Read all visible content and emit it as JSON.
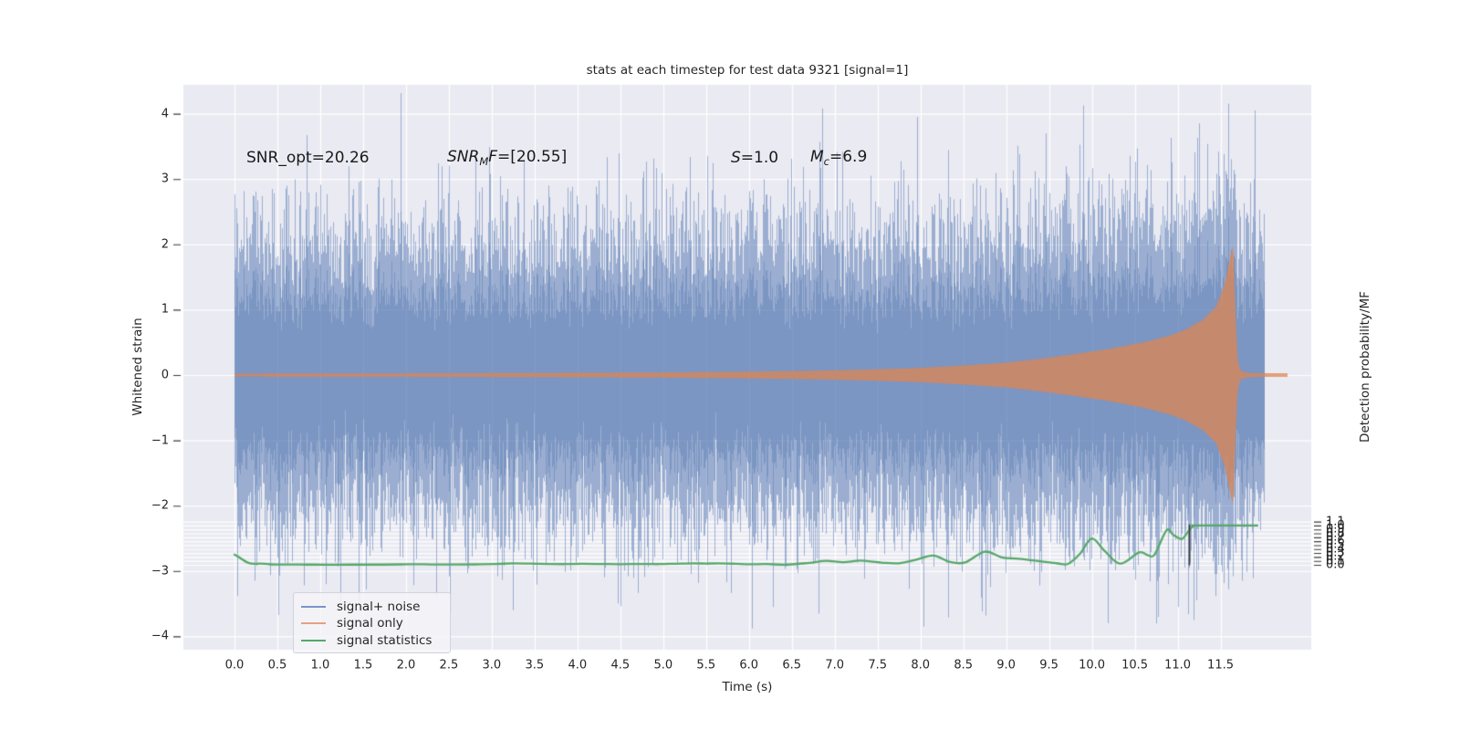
{
  "figure": {
    "title": "stats at each timestep for test data 9321 [signal=1]",
    "background": "#ffffff",
    "plot_background": "#eaeaf2",
    "grid_color": "#ffffff"
  },
  "axes": {
    "x": {
      "label": "Time (s)",
      "tick_labels": [
        "0.0",
        "0.5",
        "1.0",
        "1.5",
        "2.0",
        "2.5",
        "3.0",
        "3.5",
        "4.0",
        "4.5",
        "5.0",
        "5.5",
        "6.0",
        "6.5",
        "7.0",
        "7.5",
        "8.0",
        "8.5",
        "9.0",
        "9.5",
        "10.0",
        "10.5",
        "11.0",
        "11.5"
      ],
      "tick_values": [
        0,
        0.5,
        1,
        1.5,
        2,
        2.5,
        3,
        3.5,
        4,
        4.5,
        5,
        5.5,
        6,
        6.5,
        7,
        7.5,
        8,
        8.5,
        9,
        9.5,
        10,
        10.5,
        11,
        11.5
      ]
    },
    "y_left": {
      "label": "Whitened strain",
      "tick_labels": [
        "4",
        "3",
        "2",
        "1",
        "0",
        "−1",
        "−2",
        "−3",
        "−4"
      ],
      "tick_values": [
        4,
        3,
        2,
        1,
        0,
        -1,
        -2,
        -3,
        -4
      ]
    },
    "y_right": {
      "label": "Detection probability/MF",
      "tick_labels": [
        "1.1",
        "1.0",
        "0.9",
        "0.8",
        "0.7",
        "0.6",
        "0.5",
        "0.4",
        "0.3",
        "0.2",
        "0.1",
        "0.0"
      ],
      "tick_values": [
        1.1,
        1.0,
        0.9,
        0.8,
        0.7,
        0.6,
        0.5,
        0.4,
        0.3,
        0.2,
        0.1,
        0.0
      ]
    }
  },
  "annotations": {
    "snr_opt": {
      "text": "SNR_opt=20.26"
    },
    "snr_mf": {
      "pre": "SNR",
      "sub": "M",
      "mid": "F",
      "post": "=[20.55]"
    },
    "s": {
      "pre": "S",
      "post": "=1.0"
    },
    "mc": {
      "pre": "M",
      "sub": "c",
      "post": "=6.9"
    }
  },
  "legend": {
    "entries": [
      {
        "label": "signal+ noise",
        "color": "#7b94c9"
      },
      {
        "label": "signal only",
        "color": "#e3a183"
      },
      {
        "label": "signal statistics",
        "color": "#55A868"
      }
    ]
  },
  "chart_data": {
    "type": "line",
    "title": "stats at each timestep for test data 9321 [signal=1]",
    "xlabel": "Time (s)",
    "ylabel_left": "Whitened strain",
    "ylabel_right": "Detection probability/MF",
    "xlim": [
      -0.6,
      12.55
    ],
    "ylim_left": [
      -4.3,
      4.45
    ],
    "ylim_right": [
      -0.2,
      1.22
    ],
    "grid": true,
    "legend_position": "lower left",
    "series": [
      {
        "name": "signal+ noise",
        "kind": "noise-band",
        "axis": "left",
        "color": "#4C72B0",
        "alpha": 0.55,
        "t_range": [
          0,
          12.0
        ],
        "sigma": 1.0,
        "samples_per_column": 36,
        "seed": 9321,
        "notable_spikes": [
          {
            "t": 6.85,
            "value": 4.08
          },
          {
            "t": 7.96,
            "value": 3.95
          },
          {
            "t": 11.9,
            "value": 4.05
          },
          {
            "t": 8.04,
            "value": -3.85
          },
          {
            "t": 3.25,
            "value": -3.6
          }
        ]
      },
      {
        "name": "signal only",
        "kind": "chirp-envelope",
        "axis": "left",
        "color": "#DD8452",
        "merger_time": 11.65,
        "envelope": [
          [
            0,
            0.022
          ],
          [
            1,
            0.024
          ],
          [
            2,
            0.026
          ],
          [
            3,
            0.03
          ],
          [
            4,
            0.034
          ],
          [
            5,
            0.04
          ],
          [
            5.5,
            0.045
          ],
          [
            6,
            0.052
          ],
          [
            6.5,
            0.06
          ],
          [
            7,
            0.072
          ],
          [
            7.5,
            0.088
          ],
          [
            8,
            0.11
          ],
          [
            8.5,
            0.145
          ],
          [
            9,
            0.19
          ],
          [
            9.4,
            0.25
          ],
          [
            9.8,
            0.32
          ],
          [
            10.2,
            0.4
          ],
          [
            10.6,
            0.5
          ],
          [
            10.9,
            0.6
          ],
          [
            11.1,
            0.7
          ],
          [
            11.3,
            0.85
          ],
          [
            11.45,
            1.05
          ],
          [
            11.55,
            1.4
          ],
          [
            11.62,
            1.85
          ],
          [
            11.65,
            2.0
          ],
          [
            11.67,
            1.1
          ],
          [
            11.7,
            0.22
          ],
          [
            11.74,
            0.06
          ],
          [
            11.85,
            0.03
          ],
          [
            12.28,
            0.028
          ]
        ]
      },
      {
        "name": "signal statistics",
        "kind": "line",
        "axis": "right",
        "color": "#55A868",
        "points": [
          [
            0.0,
            0.26
          ],
          [
            0.07,
            0.17
          ],
          [
            0.15,
            0.06
          ],
          [
            0.22,
            0.025
          ],
          [
            0.3,
            0.033
          ],
          [
            0.42,
            0.012
          ],
          [
            0.6,
            0.008
          ],
          [
            0.85,
            0.006
          ],
          [
            1.1,
            0.005
          ],
          [
            1.4,
            0.006
          ],
          [
            1.72,
            0.006
          ],
          [
            1.95,
            0.012
          ],
          [
            2.1,
            0.016
          ],
          [
            2.3,
            0.01
          ],
          [
            2.55,
            0.008
          ],
          [
            2.8,
            0.012
          ],
          [
            3.05,
            0.022
          ],
          [
            3.25,
            0.036
          ],
          [
            3.45,
            0.03
          ],
          [
            3.65,
            0.022
          ],
          [
            3.85,
            0.018
          ],
          [
            4.05,
            0.026
          ],
          [
            4.3,
            0.02
          ],
          [
            4.5,
            0.016
          ],
          [
            4.75,
            0.022
          ],
          [
            4.95,
            0.018
          ],
          [
            5.15,
            0.028
          ],
          [
            5.35,
            0.038
          ],
          [
            5.5,
            0.032
          ],
          [
            5.65,
            0.038
          ],
          [
            5.85,
            0.025
          ],
          [
            6.0,
            0.014
          ],
          [
            6.2,
            0.018
          ],
          [
            6.45,
            0.006
          ],
          [
            6.7,
            0.05
          ],
          [
            6.9,
            0.1
          ],
          [
            7.1,
            0.068
          ],
          [
            7.3,
            0.105
          ],
          [
            7.55,
            0.055
          ],
          [
            7.75,
            0.04
          ],
          [
            7.95,
            0.13
          ],
          [
            8.15,
            0.235
          ],
          [
            8.35,
            0.07
          ],
          [
            8.52,
            0.06
          ],
          [
            8.75,
            0.335
          ],
          [
            8.95,
            0.19
          ],
          [
            9.15,
            0.155
          ],
          [
            9.4,
            0.09
          ],
          [
            9.6,
            0.035
          ],
          [
            9.72,
            0.022
          ],
          [
            9.86,
            0.28
          ],
          [
            10.0,
            0.67
          ],
          [
            10.15,
            0.35
          ],
          [
            10.33,
            0.03
          ],
          [
            10.55,
            0.315
          ],
          [
            10.65,
            0.248
          ],
          [
            10.73,
            0.258
          ],
          [
            10.87,
            0.875
          ],
          [
            10.95,
            0.76
          ],
          [
            11.05,
            0.66
          ],
          [
            11.12,
            0.84
          ],
          [
            11.18,
            0.98
          ],
          [
            11.24,
            1.0
          ],
          [
            11.93,
            1.0
          ]
        ]
      }
    ],
    "marker_line": {
      "t": 11.13,
      "axis": "right",
      "span": [
        0,
        1.01
      ],
      "color": "#3d3d3d"
    }
  }
}
